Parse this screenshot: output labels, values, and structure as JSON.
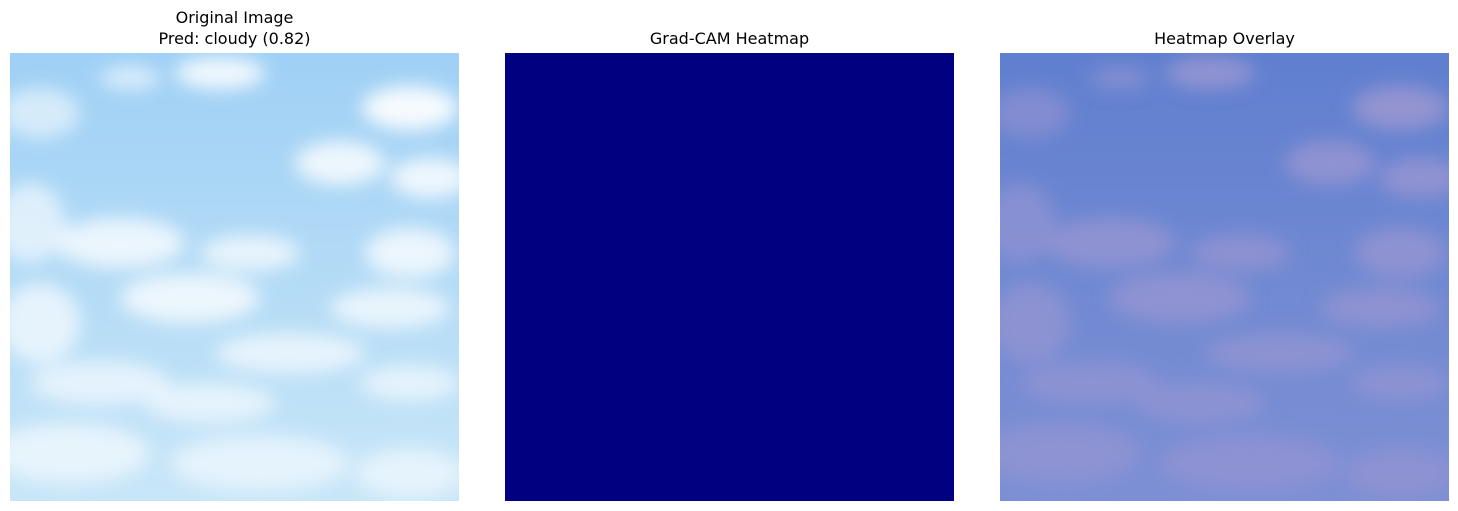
{
  "panels": [
    {
      "title_line1": "Original Image",
      "title_line2": "Pred: cloudy (0.82)",
      "content": "sky-with-clouds-photo",
      "base_color": "#a9d6f6"
    },
    {
      "title": "Grad-CAM Heatmap",
      "content": "uniform-heatmap",
      "fill_color": "#000080"
    },
    {
      "title": "Heatmap Overlay",
      "content": "sky-photo-with-blue-overlay",
      "base_color": "#6b86d0"
    }
  ]
}
